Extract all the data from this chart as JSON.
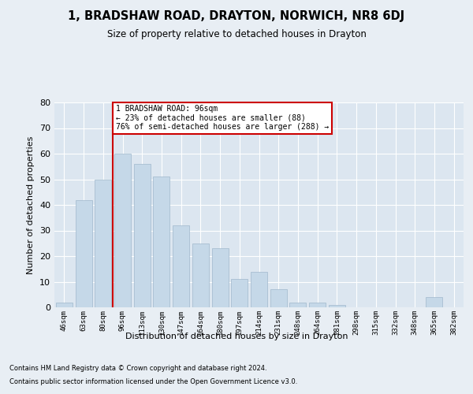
{
  "title": "1, BRADSHAW ROAD, DRAYTON, NORWICH, NR8 6DJ",
  "subtitle": "Size of property relative to detached houses in Drayton",
  "xlabel": "Distribution of detached houses by size in Drayton",
  "ylabel": "Number of detached properties",
  "categories": [
    "46sqm",
    "63sqm",
    "80sqm",
    "96sqm",
    "113sqm",
    "130sqm",
    "147sqm",
    "164sqm",
    "180sqm",
    "197sqm",
    "214sqm",
    "231sqm",
    "248sqm",
    "264sqm",
    "281sqm",
    "298sqm",
    "315sqm",
    "332sqm",
    "348sqm",
    "365sqm",
    "382sqm"
  ],
  "values": [
    2,
    42,
    50,
    60,
    56,
    51,
    32,
    25,
    23,
    11,
    14,
    7,
    2,
    2,
    1,
    0,
    0,
    0,
    0,
    4,
    0
  ],
  "bar_color": "#c5d8e8",
  "bar_edgecolor": "#a0b8cc",
  "red_line_x": 2.5,
  "annotation_text": "1 BRADSHAW ROAD: 96sqm\n← 23% of detached houses are smaller (88)\n76% of semi-detached houses are larger (288) →",
  "annotation_box_color": "#ffffff",
  "annotation_box_edgecolor": "#cc0000",
  "bg_color": "#e8eef4",
  "plot_bg_color": "#dce6f0",
  "footer1": "Contains HM Land Registry data © Crown copyright and database right 2024.",
  "footer2": "Contains public sector information licensed under the Open Government Licence v3.0.",
  "ylim": [
    0,
    80
  ],
  "yticks": [
    0,
    10,
    20,
    30,
    40,
    50,
    60,
    70,
    80
  ]
}
